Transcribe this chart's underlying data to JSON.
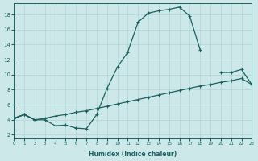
{
  "title": "",
  "xlabel": "Humidex (Indice chaleur)",
  "bg_color": "#cde8e8",
  "grid_color": "#b0d4d4",
  "line_color": "#1a6060",
  "xlim": [
    0,
    23
  ],
  "ylim": [
    1.5,
    19.5
  ],
  "xticks": [
    0,
    1,
    2,
    3,
    4,
    5,
    6,
    7,
    8,
    9,
    10,
    11,
    12,
    13,
    14,
    15,
    16,
    17,
    18,
    19,
    20,
    21,
    22,
    23
  ],
  "yticks": [
    2,
    4,
    6,
    8,
    10,
    12,
    14,
    16,
    18
  ],
  "line1_x": [
    0,
    1,
    2,
    3,
    4,
    5,
    6,
    7,
    8,
    9,
    10,
    11,
    12,
    13,
    14,
    15,
    16,
    17,
    18
  ],
  "line1_y": [
    4.2,
    4.7,
    4.0,
    4.0,
    3.2,
    3.3,
    2.9,
    2.8,
    4.7,
    8.2,
    11.0,
    13.0,
    17.0,
    18.2,
    18.5,
    18.7,
    19.0,
    17.8,
    13.3
  ],
  "line2_x": [
    0,
    1,
    2,
    20,
    21,
    22,
    23
  ],
  "line2_y": [
    4.2,
    4.7,
    4.0,
    10.3,
    10.3,
    10.7,
    8.7
  ],
  "line3_x": [
    0,
    1,
    2,
    3,
    4,
    5,
    6,
    7,
    8,
    9,
    10,
    11,
    12,
    13,
    14,
    15,
    16,
    17,
    18,
    19,
    20,
    21,
    22,
    23
  ],
  "line3_y": [
    4.2,
    4.7,
    4.0,
    4.2,
    4.5,
    4.7,
    5.0,
    5.2,
    5.5,
    5.8,
    6.1,
    6.4,
    6.7,
    7.0,
    7.3,
    7.6,
    7.9,
    8.2,
    8.5,
    8.7,
    9.0,
    9.2,
    9.5,
    8.7
  ]
}
